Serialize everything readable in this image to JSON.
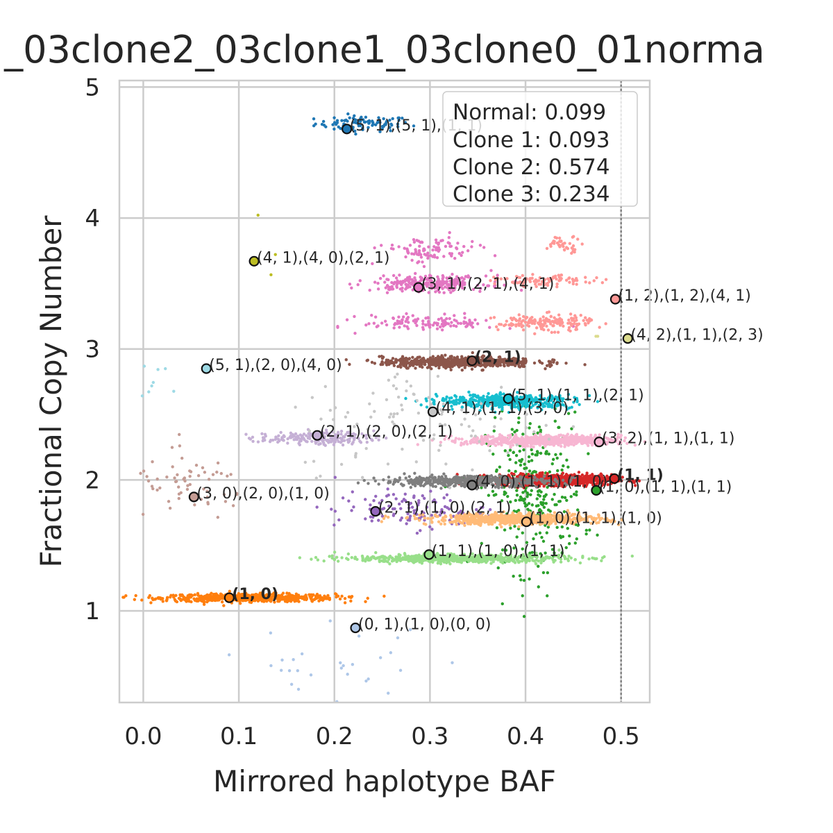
{
  "chart_data": {
    "type": "scatter",
    "title": "_03clone2_03clone1_03clone0_01norma",
    "xlabel": "Mirrored haplotype BAF",
    "ylabel": "Fractional Copy Number",
    "xlim": [
      -0.025,
      0.53
    ],
    "ylim": [
      0.3,
      5.05
    ],
    "xticks": [
      "0.0",
      "0.1",
      "0.2",
      "0.3",
      "0.4",
      "0.5"
    ],
    "yticks": [
      "1",
      "2",
      "3",
      "4",
      "5"
    ],
    "xtick_values": [
      0,
      0.1,
      0.2,
      0.3,
      0.4,
      0.5
    ],
    "ytick_values": [
      1,
      2,
      3,
      4,
      5
    ],
    "grid": true,
    "vline": 0.5,
    "legend_position": "top-right",
    "legend_lines": [
      "Normal: 0.099",
      "Clone 1: 0.093",
      "Clone 2: 0.574",
      "Clone 3: 0.234"
    ],
    "clusters": [
      {
        "color": "#1f77b4",
        "cx": 0.23,
        "cy": 4.72,
        "sx": 0.025,
        "sy": 0.03,
        "n": 90
      },
      {
        "color": "#ff7f0e",
        "cx": 0.11,
        "cy": 1.1,
        "sx": 0.045,
        "sy": 0.015,
        "n": 700
      },
      {
        "color": "#2ca02c",
        "cx": 0.41,
        "cy": 1.9,
        "sx": 0.025,
        "sy": 0.3,
        "n": 320
      },
      {
        "color": "#d62728",
        "cx": 0.43,
        "cy": 2.0,
        "sx": 0.03,
        "sy": 0.02,
        "n": 900
      },
      {
        "color": "#9467bd",
        "cx": 0.28,
        "cy": 1.77,
        "sx": 0.04,
        "sy": 0.07,
        "n": 120
      },
      {
        "color": "#8c564b",
        "cx": 0.33,
        "cy": 2.9,
        "sx": 0.04,
        "sy": 0.02,
        "n": 700
      },
      {
        "color": "#c49c94",
        "cx": 0.05,
        "cy": 1.95,
        "sx": 0.03,
        "sy": 0.12,
        "n": 60
      },
      {
        "color": "#e377c2",
        "cx": 0.3,
        "cy": 3.5,
        "sx": 0.03,
        "sy": 0.03,
        "n": 260
      },
      {
        "color": "#e377c2",
        "cx": 0.3,
        "cy": 3.75,
        "sx": 0.025,
        "sy": 0.05,
        "n": 100
      },
      {
        "color": "#e377c2",
        "cx": 0.3,
        "cy": 3.2,
        "sx": 0.035,
        "sy": 0.03,
        "n": 120
      },
      {
        "color": "#ff9896",
        "cx": 0.42,
        "cy": 3.2,
        "sx": 0.025,
        "sy": 0.03,
        "n": 160
      },
      {
        "color": "#ff9896",
        "cx": 0.42,
        "cy": 3.52,
        "sx": 0.025,
        "sy": 0.02,
        "n": 90
      },
      {
        "color": "#ff9896",
        "cx": 0.44,
        "cy": 3.8,
        "sx": 0.01,
        "sy": 0.03,
        "n": 40
      },
      {
        "color": "#7f7f7f",
        "cx": 0.34,
        "cy": 1.99,
        "sx": 0.045,
        "sy": 0.02,
        "n": 500
      },
      {
        "color": "#bcbd22",
        "cx": 0.13,
        "cy": 3.76,
        "sx": 0.01,
        "sy": 0.1,
        "n": 3
      },
      {
        "color": "#17becf",
        "cx": 0.38,
        "cy": 2.6,
        "sx": 0.035,
        "sy": 0.025,
        "n": 500
      },
      {
        "color": "#aec7e8",
        "cx": 0.2,
        "cy": 0.55,
        "sx": 0.06,
        "sy": 0.15,
        "n": 30
      },
      {
        "color": "#ffbb78",
        "cx": 0.39,
        "cy": 1.7,
        "sx": 0.045,
        "sy": 0.02,
        "n": 700
      },
      {
        "color": "#98df8a",
        "cx": 0.33,
        "cy": 1.4,
        "sx": 0.055,
        "sy": 0.015,
        "n": 700
      },
      {
        "color": "#c5b0d5",
        "cx": 0.18,
        "cy": 2.32,
        "sx": 0.03,
        "sy": 0.025,
        "n": 180
      },
      {
        "color": "#f7b6d2",
        "cx": 0.42,
        "cy": 2.3,
        "sx": 0.04,
        "sy": 0.02,
        "n": 700
      },
      {
        "color": "#c7c7c7",
        "cx": 0.3,
        "cy": 2.45,
        "sx": 0.07,
        "sy": 0.2,
        "n": 110
      },
      {
        "color": "#dbdb8d",
        "cx": 0.48,
        "cy": 3.1,
        "sx": 0.005,
        "sy": 0.01,
        "n": 2
      },
      {
        "color": "#9edae5",
        "cx": 0.01,
        "cy": 2.8,
        "sx": 0.008,
        "sy": 0.15,
        "n": 8
      }
    ],
    "annotations": [
      {
        "x": 0.213,
        "y": 4.68,
        "label": "(5, 1),(5, 1),(1, 1)",
        "color": "#1f77b4",
        "bold": false
      },
      {
        "x": 0.116,
        "y": 3.67,
        "label": "(4, 1),(4, 0),(2, 1)",
        "color": "#bcbd22",
        "bold": false
      },
      {
        "x": 0.288,
        "y": 3.47,
        "label": "(3, 1),(2, 1),(4, 1)",
        "color": "#e377c2",
        "bold": false
      },
      {
        "x": 0.494,
        "y": 3.38,
        "label": "(1, 2),(1, 2),(4, 1)",
        "color": "#ff9896",
        "bold": false
      },
      {
        "x": 0.507,
        "y": 3.08,
        "label": "(4, 2),(1, 1),(2, 3)",
        "color": "#dbdb8d",
        "bold": false
      },
      {
        "x": 0.066,
        "y": 2.85,
        "label": "(5, 1),(2, 0),(4, 0)",
        "color": "#9edae5",
        "bold": false
      },
      {
        "x": 0.344,
        "y": 2.91,
        "label": "(2, 1)",
        "color": "#8c564b",
        "bold": true
      },
      {
        "x": 0.382,
        "y": 2.62,
        "label": "(5, 1),(1, 1),(2, 1)",
        "color": "#17becf",
        "bold": false
      },
      {
        "x": 0.303,
        "y": 2.52,
        "label": "(4, 1),(1, 1),(3, 0)",
        "color": "#c7c7c7",
        "bold": false
      },
      {
        "x": 0.182,
        "y": 2.34,
        "label": "(2, 1),(2, 0),(2, 1)",
        "color": "#c5b0d5",
        "bold": false
      },
      {
        "x": 0.477,
        "y": 2.29,
        "label": "(3, 2),(1, 1),(1, 1)",
        "color": "#f7b6d2",
        "bold": false
      },
      {
        "x": 0.493,
        "y": 2.01,
        "label": "(1, 1)",
        "color": "#d62728",
        "bold": true
      },
      {
        "x": 0.344,
        "y": 1.96,
        "label": "(4, 0),(1, 1),(1, 0)",
        "color": "#7f7f7f",
        "bold": false
      },
      {
        "x": 0.474,
        "y": 1.92,
        "label": "(1, 0),(1, 1),(1, 1)",
        "color": "#2ca02c",
        "bold": false
      },
      {
        "x": 0.053,
        "y": 1.87,
        "label": "(3, 0),(2, 0),(1, 0)",
        "color": "#c49c94",
        "bold": false
      },
      {
        "x": 0.243,
        "y": 1.76,
        "label": "(2, 1),(1, 0),(2, 1)",
        "color": "#9467bd",
        "bold": false
      },
      {
        "x": 0.401,
        "y": 1.68,
        "label": "(1, 0),(1, 1),(1, 0)",
        "color": "#ffbb78",
        "bold": false
      },
      {
        "x": 0.299,
        "y": 1.43,
        "label": "(1, 1),(1, 0),(1, 1)",
        "color": "#98df8a",
        "bold": false
      },
      {
        "x": 0.09,
        "y": 1.1,
        "label": "(1, 0)",
        "color": "#ff7f0e",
        "bold": true
      },
      {
        "x": 0.222,
        "y": 0.87,
        "label": "(0, 1),(1, 0),(0, 0)",
        "color": "#aec7e8",
        "bold": false
      }
    ]
  }
}
